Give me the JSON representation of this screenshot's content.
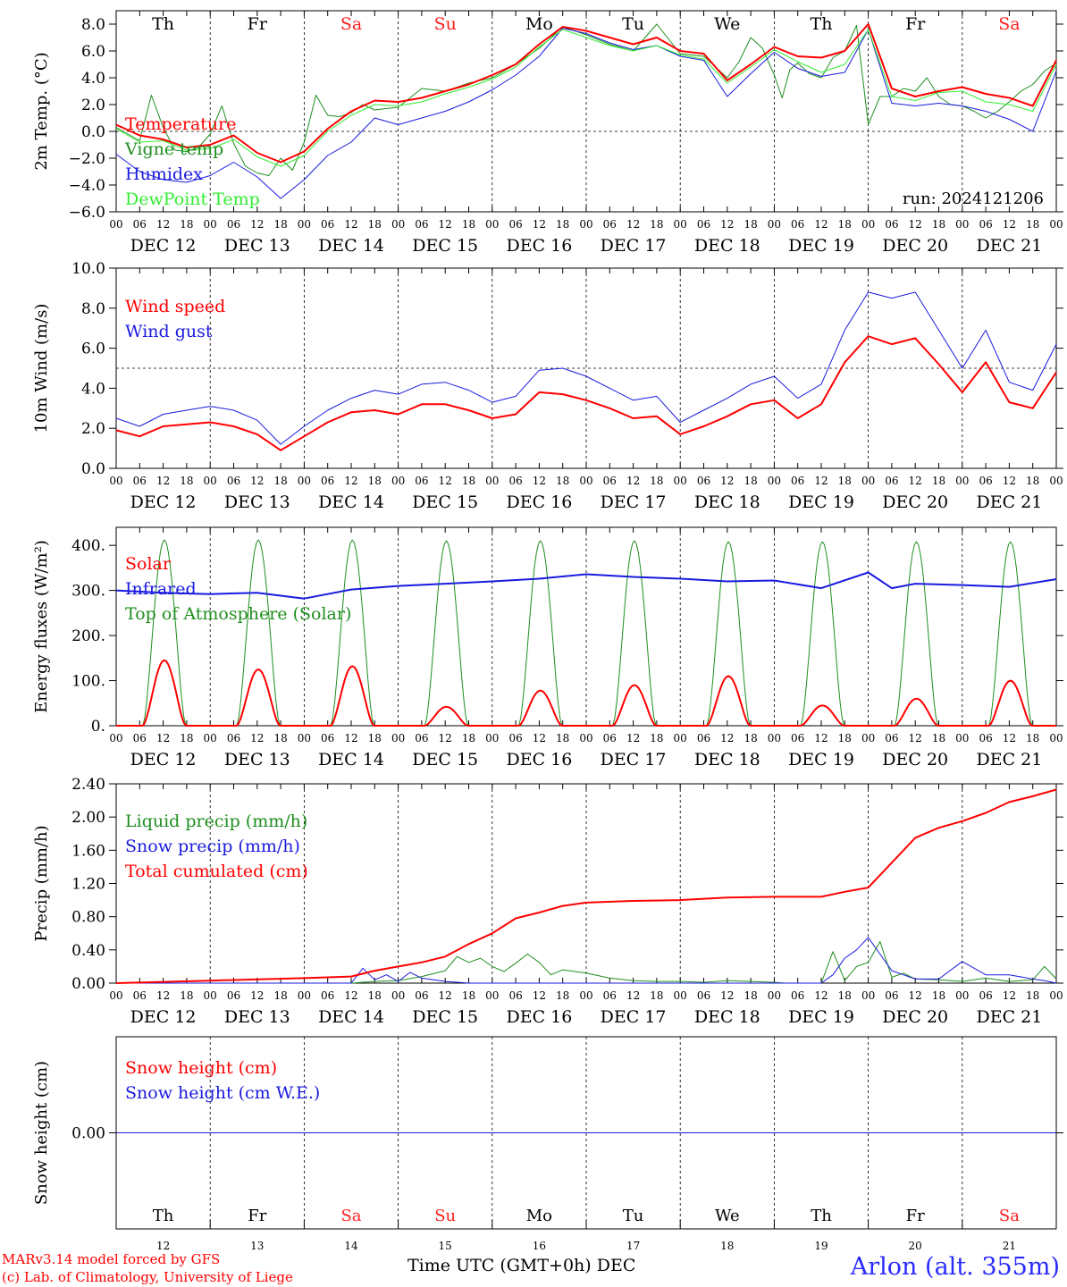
{
  "station": "Arlon (alt. 355m)",
  "credits": [
    "MARv3.14 model forced by GFS",
    "(c) Lab. of Climatology, University of Liege"
  ],
  "xaxis_label": "Time UTC (GMT+0h)",
  "month": "DEC",
  "day_numbers": [
    "12",
    "13",
    "14",
    "15",
    "16",
    "17",
    "18",
    "19",
    "20",
    "21"
  ],
  "day_labels": [
    "DEC 12",
    "DEC 13",
    "DEC 14",
    "DEC 15",
    "DEC 16",
    "DEC 17",
    "DEC 18",
    "DEC 19",
    "DEC 20",
    "DEC 21"
  ],
  "weekdays": [
    "Th",
    "Fr",
    "Sa",
    "Su",
    "Mo",
    "Tu",
    "We",
    "Th",
    "Fr",
    "Sa"
  ],
  "weekend_color": "#ff2020",
  "hour_ticks": [
    "00",
    "06",
    "12",
    "18"
  ],
  "run": "run: 2024121206",
  "chart_data": [
    {
      "id": "temp",
      "type": "line",
      "ylabel": "2m Temp. (°C)",
      "ylim": [
        -6,
        9
      ],
      "yticks": [
        -6,
        -4,
        -2,
        0,
        2,
        4,
        6,
        8
      ],
      "ytick_labels": [
        "−6.0",
        "−4.0",
        "−2.0",
        "0.0",
        "2.0",
        "4.0",
        "6.0",
        "8.0"
      ],
      "refline": 0,
      "x_hours_from": "DEC 12 00",
      "series": [
        {
          "name": "Temperature",
          "color": "#ff0000",
          "width": 2,
          "x": [
            0,
            6,
            12,
            18,
            24,
            30,
            36,
            42,
            48,
            54,
            60,
            66,
            72,
            78,
            84,
            90,
            96,
            102,
            108,
            114,
            120,
            126,
            132,
            138,
            144,
            150,
            156,
            162,
            168,
            174,
            180,
            186,
            192,
            198,
            204,
            210,
            216,
            222,
            228,
            234,
            240
          ],
          "y": [
            0.5,
            -0.3,
            -0.6,
            -1.2,
            -1.0,
            -0.3,
            -1.6,
            -2.3,
            -1.5,
            0.2,
            1.5,
            2.3,
            2.2,
            2.5,
            3.0,
            3.5,
            4.2,
            5.0,
            6.5,
            7.8,
            7.5,
            7.0,
            6.5,
            7.0,
            6.0,
            5.8,
            3.8,
            5.0,
            6.3,
            5.6,
            5.5,
            6.0,
            8.0,
            3.2,
            2.6,
            3.0,
            3.3,
            2.8,
            2.5,
            1.9,
            5.3
          ]
        },
        {
          "name": "Vigne temp",
          "color": "#1f8f1f",
          "width": 1,
          "x": [
            0,
            3,
            6,
            9,
            12,
            15,
            18,
            21,
            24,
            27,
            30,
            33,
            36,
            39,
            42,
            45,
            48,
            51,
            54,
            57,
            60,
            63,
            66,
            69,
            72,
            78,
            84,
            90,
            96,
            102,
            108,
            114,
            120,
            126,
            132,
            138,
            144,
            150,
            156,
            159,
            162,
            165,
            168,
            170,
            172,
            174,
            177,
            180,
            183,
            186,
            189,
            192,
            195,
            198,
            201,
            204,
            207,
            210,
            213,
            216,
            219,
            222,
            225,
            228,
            231,
            234,
            237,
            240
          ],
          "y": [
            0.3,
            -0.2,
            -0.7,
            2.7,
            0.3,
            -1.4,
            -1.5,
            -1.2,
            -0.2,
            1.9,
            -0.9,
            -2.6,
            -3.1,
            -3.3,
            -2.0,
            -2.9,
            -0.8,
            2.7,
            1.2,
            1.1,
            1.4,
            2.0,
            1.6,
            1.7,
            1.8,
            3.2,
            3.0,
            3.6,
            4.0,
            5.0,
            6.2,
            7.8,
            7.2,
            6.5,
            6.0,
            8.0,
            5.8,
            5.6,
            4.0,
            5.2,
            7.0,
            6.2,
            4.2,
            2.5,
            4.6,
            5.1,
            4.3,
            4.0,
            5.5,
            6.0,
            7.9,
            0.5,
            2.6,
            2.6,
            3.2,
            3.0,
            4.0,
            2.6,
            2.0,
            1.9,
            1.5,
            1.0,
            1.5,
            2.2,
            3.0,
            3.5,
            4.5,
            5.1
          ]
        },
        {
          "name": "Humidex",
          "color": "#1a1adf",
          "width": 1,
          "x": [
            0,
            6,
            12,
            18,
            24,
            30,
            36,
            42,
            48,
            54,
            60,
            66,
            72,
            78,
            84,
            90,
            96,
            102,
            108,
            114,
            120,
            126,
            132,
            138,
            144,
            150,
            156,
            162,
            168,
            174,
            180,
            186,
            192,
            198,
            204,
            210,
            216,
            222,
            228,
            234,
            240
          ],
          "y": [
            -1.7,
            -3.0,
            -3.6,
            -3.8,
            -3.3,
            -2.3,
            -3.4,
            -5.0,
            -3.6,
            -1.8,
            -0.8,
            1.0,
            0.5,
            1.0,
            1.5,
            2.2,
            3.1,
            4.2,
            5.6,
            7.7,
            7.3,
            6.6,
            6.1,
            6.4,
            5.6,
            5.3,
            2.6,
            4.3,
            5.9,
            4.7,
            4.1,
            4.4,
            7.6,
            2.1,
            1.9,
            2.1,
            1.9,
            1.5,
            0.9,
            0.0,
            4.5
          ]
        },
        {
          "name": "DewPoint Temp",
          "color": "#33ee33",
          "width": 1,
          "x": [
            0,
            6,
            12,
            18,
            24,
            30,
            36,
            42,
            48,
            54,
            60,
            66,
            72,
            78,
            84,
            90,
            96,
            102,
            108,
            114,
            120,
            126,
            132,
            138,
            144,
            150,
            156,
            162,
            168,
            174,
            180,
            186,
            192,
            198,
            204,
            210,
            216,
            222,
            228,
            234,
            240
          ],
          "y": [
            0.2,
            -0.8,
            -0.7,
            -1.4,
            -1.3,
            -0.6,
            -1.9,
            -2.6,
            -1.8,
            0.0,
            1.2,
            2.0,
            1.9,
            2.2,
            2.8,
            3.3,
            3.9,
            4.8,
            6.3,
            7.6,
            7.0,
            6.4,
            6.0,
            6.4,
            5.7,
            5.4,
            3.6,
            4.8,
            6.1,
            5.2,
            4.4,
            5.0,
            7.6,
            2.6,
            2.3,
            2.9,
            3.0,
            2.2,
            2.0,
            1.5,
            5.0
          ]
        }
      ]
    },
    {
      "id": "wind",
      "type": "line",
      "ylabel": "10m Wind (m/s)",
      "ylim": [
        0,
        10
      ],
      "yticks": [
        0,
        2,
        4,
        6,
        8,
        10
      ],
      "ytick_labels": [
        "0.0",
        "2.0",
        "4.0",
        "6.0",
        "8.0",
        "10.0"
      ],
      "refline": 5,
      "series": [
        {
          "name": "Wind speed",
          "color": "#ff0000",
          "width": 2,
          "x": [
            0,
            6,
            12,
            18,
            24,
            30,
            36,
            42,
            48,
            54,
            60,
            66,
            72,
            78,
            84,
            90,
            96,
            102,
            108,
            114,
            120,
            126,
            132,
            138,
            144,
            150,
            156,
            162,
            168,
            174,
            180,
            186,
            192,
            198,
            204,
            210,
            216,
            222,
            228,
            234,
            240
          ],
          "y": [
            1.9,
            1.6,
            2.1,
            2.2,
            2.3,
            2.1,
            1.7,
            0.9,
            1.6,
            2.3,
            2.8,
            2.9,
            2.7,
            3.2,
            3.2,
            2.9,
            2.5,
            2.7,
            3.8,
            3.7,
            3.4,
            3.0,
            2.5,
            2.6,
            1.7,
            2.1,
            2.6,
            3.2,
            3.4,
            2.5,
            3.2,
            5.3,
            6.6,
            6.2,
            6.5,
            5.2,
            3.8,
            5.3,
            3.3,
            3.0,
            4.8
          ]
        },
        {
          "name": "Wind gust",
          "color": "#1a1adf",
          "width": 1,
          "x": [
            0,
            6,
            12,
            18,
            24,
            30,
            36,
            42,
            48,
            54,
            60,
            66,
            72,
            78,
            84,
            90,
            96,
            102,
            108,
            114,
            120,
            126,
            132,
            138,
            144,
            150,
            156,
            162,
            168,
            174,
            180,
            186,
            192,
            198,
            204,
            210,
            216,
            222,
            228,
            234,
            240
          ],
          "y": [
            2.5,
            2.1,
            2.7,
            2.9,
            3.1,
            2.9,
            2.4,
            1.2,
            2.1,
            2.9,
            3.5,
            3.9,
            3.7,
            4.2,
            4.3,
            3.9,
            3.3,
            3.6,
            4.9,
            5.0,
            4.6,
            4.0,
            3.4,
            3.6,
            2.3,
            2.9,
            3.5,
            4.2,
            4.6,
            3.5,
            4.2,
            6.9,
            8.8,
            8.5,
            8.8,
            6.9,
            5.0,
            6.9,
            4.3,
            3.9,
            6.2
          ]
        }
      ]
    },
    {
      "id": "energy",
      "type": "line",
      "ylabel": "Energy fluxes (W/m²)",
      "ylim": [
        0,
        440
      ],
      "yticks": [
        0,
        100,
        200,
        300,
        400
      ],
      "ytick_labels": [
        "0.",
        "100.",
        "200.",
        "300.",
        "400."
      ],
      "series": [
        {
          "name": "Solar",
          "color": "#ff0000",
          "width": 2,
          "peaks": [
            145,
            125,
            132,
            42,
            78,
            90,
            110,
            45,
            60,
            100
          ]
        },
        {
          "name": "Infrared",
          "color": "#1a1adf",
          "width": 2,
          "x": [
            0,
            12,
            24,
            36,
            48,
            60,
            72,
            84,
            96,
            108,
            120,
            132,
            144,
            156,
            168,
            180,
            192,
            198,
            204,
            216,
            228,
            240
          ],
          "y": [
            300,
            295,
            292,
            295,
            282,
            302,
            310,
            315,
            320,
            326,
            336,
            330,
            326,
            320,
            322,
            305,
            340,
            305,
            315,
            312,
            308,
            325
          ]
        },
        {
          "name": "Top of Atmosphere (Solar)",
          "color": "#1f8f1f",
          "width": 1,
          "peaks": [
            412,
            412,
            412,
            410,
            410,
            410,
            408,
            408,
            408,
            408
          ]
        }
      ]
    },
    {
      "id": "precip",
      "type": "line",
      "ylabel": "Precip (mm/h)",
      "ylim": [
        0,
        2.4
      ],
      "yticks": [
        0,
        0.4,
        0.8,
        1.2,
        1.6,
        2.0,
        2.4
      ],
      "ytick_labels": [
        "0.00",
        "0.40",
        "0.80",
        "1.20",
        "1.60",
        "2.00",
        "2.40"
      ],
      "series": [
        {
          "name": "Liquid precip (mm/h)",
          "color": "#1f8f1f",
          "width": 1,
          "x": [
            0,
            60,
            66,
            72,
            78,
            84,
            87,
            90,
            93,
            96,
            99,
            102,
            105,
            108,
            111,
            114,
            120,
            126,
            132,
            138,
            144,
            150,
            156,
            162,
            168,
            171,
            174,
            180,
            183,
            186,
            189,
            192,
            195,
            198,
            201,
            204,
            210,
            216,
            222,
            228,
            234,
            237,
            240
          ],
          "y": [
            0,
            0,
            0.02,
            0.03,
            0.08,
            0.15,
            0.32,
            0.25,
            0.3,
            0.2,
            0.14,
            0.24,
            0.35,
            0.25,
            0.1,
            0.16,
            0.12,
            0.06,
            0.03,
            0.02,
            0.02,
            0.01,
            0.03,
            0.02,
            0.01,
            0,
            0,
            0,
            0.38,
            0.03,
            0.2,
            0.25,
            0.5,
            0.07,
            0.12,
            0.05,
            0.04,
            0.02,
            0.06,
            0.02,
            0.04,
            0.2,
            0.05
          ]
        },
        {
          "name": "Snow precip (mm/h)",
          "color": "#1a1adf",
          "width": 1,
          "x": [
            0,
            60,
            63,
            66,
            69,
            72,
            75,
            78,
            84,
            90,
            96,
            174,
            180,
            183,
            186,
            189,
            192,
            195,
            198,
            201,
            204,
            210,
            216,
            222,
            228,
            234,
            237,
            240
          ],
          "y": [
            0,
            0,
            0.18,
            0.04,
            0.1,
            0.02,
            0.13,
            0.06,
            0.02,
            0,
            0,
            0,
            0,
            0.1,
            0.3,
            0.4,
            0.55,
            0.35,
            0.15,
            0.1,
            0.05,
            0.05,
            0.26,
            0.1,
            0.1,
            0.05,
            0.03,
            0
          ]
        },
        {
          "name": "Total cumulated (cm)",
          "color": "#ff0000",
          "width": 2,
          "x": [
            0,
            24,
            48,
            60,
            66,
            72,
            78,
            84,
            90,
            96,
            102,
            108,
            114,
            120,
            132,
            144,
            156,
            168,
            180,
            186,
            192,
            198,
            204,
            210,
            216,
            222,
            228,
            234,
            240
          ],
          "y": [
            0,
            0.03,
            0.06,
            0.08,
            0.15,
            0.2,
            0.25,
            0.32,
            0.47,
            0.6,
            0.78,
            0.85,
            0.93,
            0.97,
            0.99,
            1.0,
            1.03,
            1.04,
            1.04,
            1.1,
            1.15,
            1.45,
            1.75,
            1.87,
            1.95,
            2.05,
            2.18,
            2.25,
            2.33
          ]
        }
      ]
    },
    {
      "id": "snow",
      "type": "line",
      "ylabel": "Snow height (cm)",
      "ylim": [
        -1,
        1
      ],
      "yticks": [
        0
      ],
      "ytick_labels": [
        "0.00"
      ],
      "series": [
        {
          "name": "Snow height (cm)",
          "color": "#ff0000",
          "width": 1,
          "x": [
            0,
            240
          ],
          "y": [
            0,
            0
          ]
        },
        {
          "name": "Snow height (cm W.E.)",
          "color": "#1a1adf",
          "width": 1,
          "x": [
            0,
            240
          ],
          "y": [
            0,
            0
          ]
        }
      ]
    }
  ]
}
